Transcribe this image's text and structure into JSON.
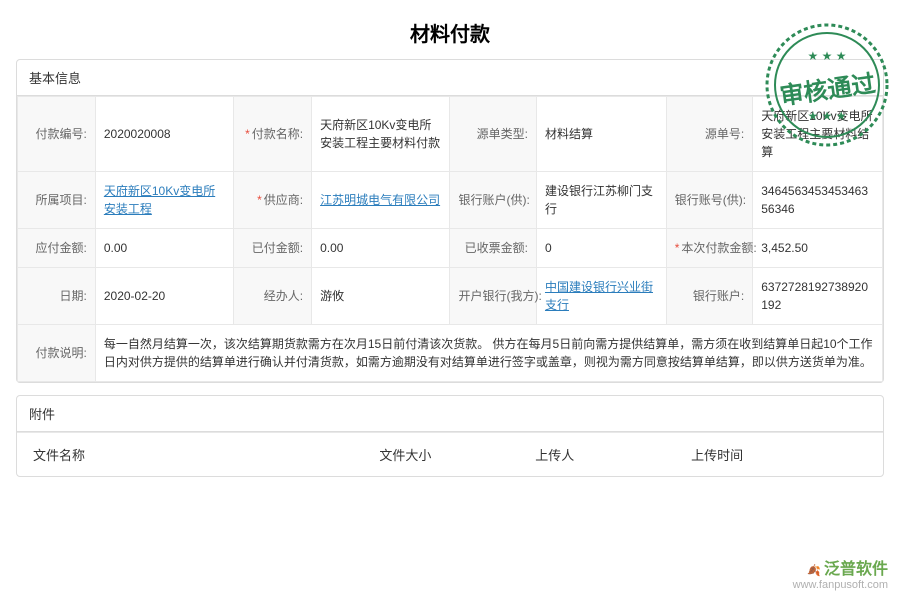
{
  "title": "材料付款",
  "stamp_text": "审核通过",
  "stamp_color": "#2e8b57",
  "sections": {
    "basic": {
      "header": "基本信息",
      "rows": [
        [
          {
            "label": "付款编号:",
            "value": "2020020008",
            "required": false
          },
          {
            "label": "付款名称:",
            "value": "天府新区10Kv变电所安装工程主要材料付款",
            "required": true
          },
          {
            "label": "源单类型:",
            "value": "材料结算",
            "required": false
          },
          {
            "label": "源单号:",
            "value": "天府新区10Kv变电所安装工程主要材料结算",
            "required": false
          }
        ],
        [
          {
            "label": "所属项目:",
            "value": "天府新区10Kv变电所安装工程",
            "required": false,
            "link": true
          },
          {
            "label": "供应商:",
            "value": "江苏明城电气有限公司",
            "required": true,
            "link": true
          },
          {
            "label": "银行账户(供):",
            "value": "建设银行江苏柳门支行",
            "required": false
          },
          {
            "label": "银行账号(供):",
            "value": "346456345345346356346",
            "required": false
          }
        ],
        [
          {
            "label": "应付金额:",
            "value": "0.00",
            "required": false
          },
          {
            "label": "已付金额:",
            "value": "0.00",
            "required": false
          },
          {
            "label": "已收票金额:",
            "value": "0",
            "required": false
          },
          {
            "label": "本次付款金额:",
            "value": "3,452.50",
            "required": true
          }
        ],
        [
          {
            "label": "日期:",
            "value": "2020-02-20",
            "required": false
          },
          {
            "label": "经办人:",
            "value": "游攸",
            "required": false
          },
          {
            "label": "开户银行(我方):",
            "value": "中国建设银行兴业街支行",
            "required": false,
            "link": true
          },
          {
            "label": "银行账户:",
            "value": "63727281927389201​92",
            "required": false
          }
        ]
      ],
      "note": {
        "label": "付款说明:",
        "value": "每一自然月结算一次，该次结算期货款需方在次月15日前付清该次货款。 供方在每月5日前向需方提供结算单，需方须在收到结算单日起10个工作日内对供方提供的结算单进行确认并付清货款，如需方逾期没有对结算单进行签字或盖章，则视为需方同意按结算单结算，即以供方送货单为准。"
      }
    },
    "attach": {
      "header": "附件",
      "columns": [
        "文件名称",
        "文件大小",
        "上传人",
        "上传时间"
      ]
    }
  },
  "watermark": {
    "brand": "泛普软件",
    "url": "www.fanpusoft.com"
  }
}
